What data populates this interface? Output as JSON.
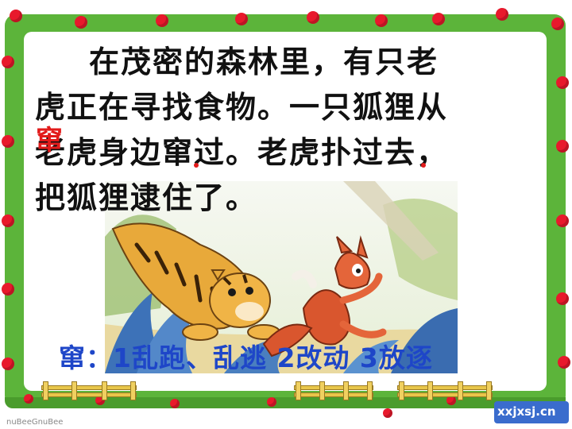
{
  "paragraph": {
    "line1": "在茂密的森林里，有只老",
    "line2": "虎正在寻找食物。一只狐狸从",
    "line3": "老虎身边窜过。老虎扑过去，",
    "line4": "把狐狸逮住了。"
  },
  "pinyin_annotation": "窜",
  "definition": "窜：1乱跑、乱逃  2改动  3放逐",
  "watermark": "xxjxsj.cn",
  "footer_text": "nuBeeGnuBee",
  "illustration": {
    "subject": "tiger chasing fox"
  },
  "colors": {
    "frame": "#5cb43a",
    "dots": "#e8192c",
    "pinyin": "#e21b1b",
    "definition": "#1e46c8"
  }
}
